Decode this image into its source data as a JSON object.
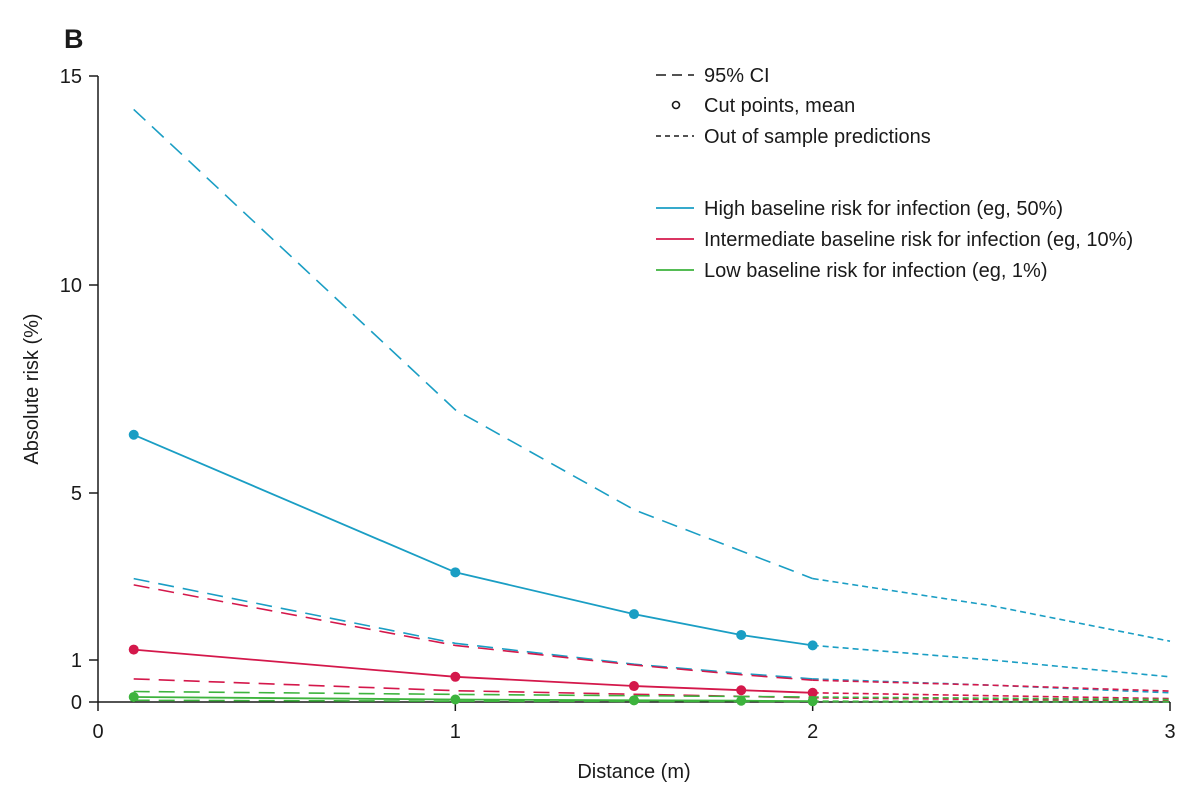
{
  "chart_data": {
    "type": "line",
    "panel_label": "B",
    "xlabel": "Distance (m)",
    "ylabel": "Absolute risk (%)",
    "xlim": [
      0,
      3
    ],
    "ylim": [
      0,
      15
    ],
    "x_ticks": [
      "0",
      "1",
      "2",
      "3"
    ],
    "x_tick_values": [
      0,
      1,
      2,
      3
    ],
    "y_ticks": [
      "0",
      "1",
      "5",
      "10",
      "15"
    ],
    "y_tick_values": [
      0,
      1,
      5,
      10,
      15
    ],
    "grid": false,
    "legend_position": "top-right",
    "legend": {
      "ci": "95% CI",
      "cut_points": "Cut points, mean",
      "oos": "Out of sample predictions",
      "high": "High baseline risk for infection (eg, 50%)",
      "intermediate": "Intermediate baseline risk for infection (eg, 10%)",
      "low": "Low baseline risk for infection (eg, 1%)"
    },
    "colors": {
      "high": "#1a9ec4",
      "intermediate": "#d4184b",
      "low": "#3db33d",
      "axis": "#1a1a1a"
    },
    "series": [
      {
        "name": "high",
        "mean": {
          "x": [
            0.1,
            1,
            1.5,
            1.8,
            2
          ],
          "y": [
            6.4,
            3.1,
            2.1,
            1.6,
            1.35
          ]
        },
        "upper": {
          "x": [
            0.1,
            1,
            1.5,
            2
          ],
          "y": [
            14.2,
            7.0,
            4.6,
            2.95
          ]
        },
        "lower": {
          "x": [
            0.1,
            1,
            1.5,
            1.8,
            2
          ],
          "y": [
            2.95,
            1.4,
            0.9,
            0.68,
            0.55
          ]
        },
        "oos_mean": {
          "x": [
            2,
            2.5,
            3
          ],
          "y": [
            1.35,
            1.0,
            0.6
          ]
        },
        "oos_upper": {
          "x": [
            2,
            2.5,
            3
          ],
          "y": [
            2.95,
            2.3,
            1.45
          ]
        },
        "oos_lower": {
          "x": [
            2,
            2.5,
            3
          ],
          "y": [
            0.55,
            0.4,
            0.22
          ]
        }
      },
      {
        "name": "intermediate",
        "mean": {
          "x": [
            0.1,
            1,
            1.5,
            1.8,
            2
          ],
          "y": [
            1.25,
            0.6,
            0.38,
            0.28,
            0.22
          ]
        },
        "upper": {
          "x": [
            0.1,
            1,
            1.5,
            1.8,
            2
          ],
          "y": [
            2.8,
            1.35,
            0.88,
            0.65,
            0.52
          ]
        },
        "lower": {
          "x": [
            0.1,
            1,
            2
          ],
          "y": [
            0.55,
            0.27,
            0.1
          ]
        },
        "oos_mean": {
          "x": [
            2,
            2.5,
            3
          ],
          "y": [
            0.22,
            0.15,
            0.08
          ]
        },
        "oos_upper": {
          "x": [
            2,
            2.5,
            3
          ],
          "y": [
            0.52,
            0.4,
            0.26
          ]
        },
        "oos_lower": {
          "x": [
            2,
            2.5,
            3
          ],
          "y": [
            0.1,
            0.06,
            0.03
          ]
        }
      },
      {
        "name": "low",
        "mean": {
          "x": [
            0.1,
            1,
            1.5,
            1.8,
            2
          ],
          "y": [
            0.12,
            0.06,
            0.04,
            0.03,
            0.02
          ]
        },
        "upper": {
          "x": [
            0.1,
            1,
            2
          ],
          "y": [
            0.25,
            0.18,
            0.12
          ]
        },
        "lower": {
          "x": [
            0.1,
            1,
            2
          ],
          "y": [
            0.04,
            0.02,
            0.01
          ]
        },
        "oos_mean": {
          "x": [
            2,
            2.5,
            3
          ],
          "y": [
            0.02,
            0.015,
            0.01
          ]
        },
        "oos_upper": {
          "x": [
            2,
            2.5,
            3
          ],
          "y": [
            0.12,
            0.09,
            0.06
          ]
        },
        "oos_lower": {
          "x": [
            2,
            2.5,
            3
          ],
          "y": [
            0.01,
            0.008,
            0.005
          ]
        }
      }
    ]
  }
}
